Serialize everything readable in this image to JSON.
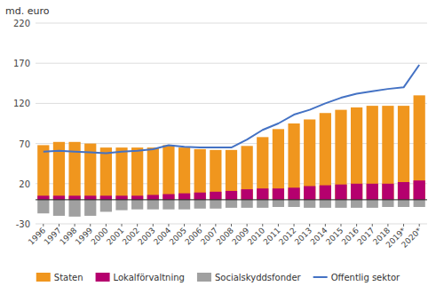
{
  "chart_data": {
    "type": "bar",
    "ylabel": "md. euro",
    "categories": [
      "1996",
      "1997",
      "1998",
      "1999",
      "2000",
      "2001",
      "2002",
      "2003",
      "2004",
      "2005",
      "2006",
      "2007",
      "2008",
      "2009",
      "2010",
      "2011",
      "2012",
      "2013",
      "2014",
      "2015",
      "2016",
      "2017",
      "2018",
      "2019*",
      "2020*"
    ],
    "series": [
      {
        "name": "Staten",
        "type": "bar",
        "color": "#f0961e",
        "values": [
          68,
          72,
          72,
          70,
          65,
          65,
          65,
          65,
          68,
          65,
          63,
          62,
          62,
          67,
          78,
          88,
          95,
          100,
          108,
          112,
          115,
          117,
          117,
          117,
          130
        ]
      },
      {
        "name": "Lokalförvaltning",
        "type": "bar",
        "color": "#b5006e",
        "values": [
          5,
          5,
          5,
          5,
          5,
          5,
          5,
          6,
          7,
          8,
          9,
          10,
          11,
          13,
          14,
          14,
          15,
          17,
          18,
          19,
          20,
          20,
          20,
          22,
          24
        ]
      },
      {
        "name": "Socialskyddsfonder",
        "type": "bar",
        "color": "#a0a0a0",
        "values": [
          -17,
          -20,
          -21,
          -20,
          -15,
          -13,
          -12,
          -12,
          -12,
          -12,
          -11,
          -11,
          -10,
          -10,
          -10,
          -9,
          -9,
          -10,
          -10,
          -10,
          -10,
          -10,
          -9,
          -9,
          -9
        ]
      },
      {
        "name": "Offentlig sektor",
        "type": "line",
        "color": "#4472c4",
        "values": [
          60,
          61,
          60,
          59,
          58,
          60,
          61,
          63,
          68,
          66,
          65,
          65,
          65,
          75,
          87,
          95,
          106,
          112,
          120,
          127,
          132,
          135,
          138,
          140,
          168
        ]
      }
    ],
    "stacked": false,
    "ylim": [
      -30,
      220
    ],
    "yticks": [
      -30,
      20,
      70,
      120,
      170,
      220
    ],
    "grid": true,
    "legend": "bottom"
  }
}
